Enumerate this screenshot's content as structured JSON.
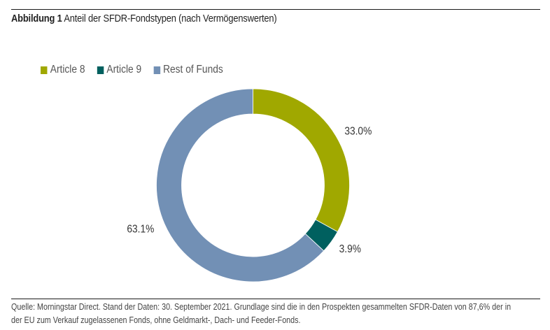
{
  "header": {
    "figure_label": "Abbildung 1",
    "figure_title": "Anteil der SFDR-Fondstypen (nach Vermögenswerten)"
  },
  "chart_data": {
    "type": "pie",
    "variant": "donut",
    "title": "Anteil der SFDR-Fondstypen (nach Vermögenswerten)",
    "legend_position": "top-left",
    "categories": [
      "Article 8",
      "Article 9",
      "Rest of Funds"
    ],
    "values": [
      33.0,
      3.9,
      63.1
    ],
    "labels": [
      "33.0%",
      "3.9%",
      "63.1%"
    ],
    "unit": "%",
    "colors": [
      "#a0a800",
      "#00605f",
      "#7290b5"
    ]
  },
  "legend": [
    {
      "label": "Article 8",
      "color": "#a0a800"
    },
    {
      "label": "Article 9",
      "color": "#00605f"
    },
    {
      "label": "Rest of Funds",
      "color": "#7290b5"
    }
  ],
  "footnote": {
    "line1": "Quelle: Morningstar Direct. Stand der Daten: 30. September 2021. Grundlage sind die in den Prospekten gesammelten SFDR-Daten von 87,6% der in",
    "line2": "der EU zum Verkauf zugelassenen Fonds, ohne Geldmarkt-, Dach- und Feeder-Fonds."
  }
}
